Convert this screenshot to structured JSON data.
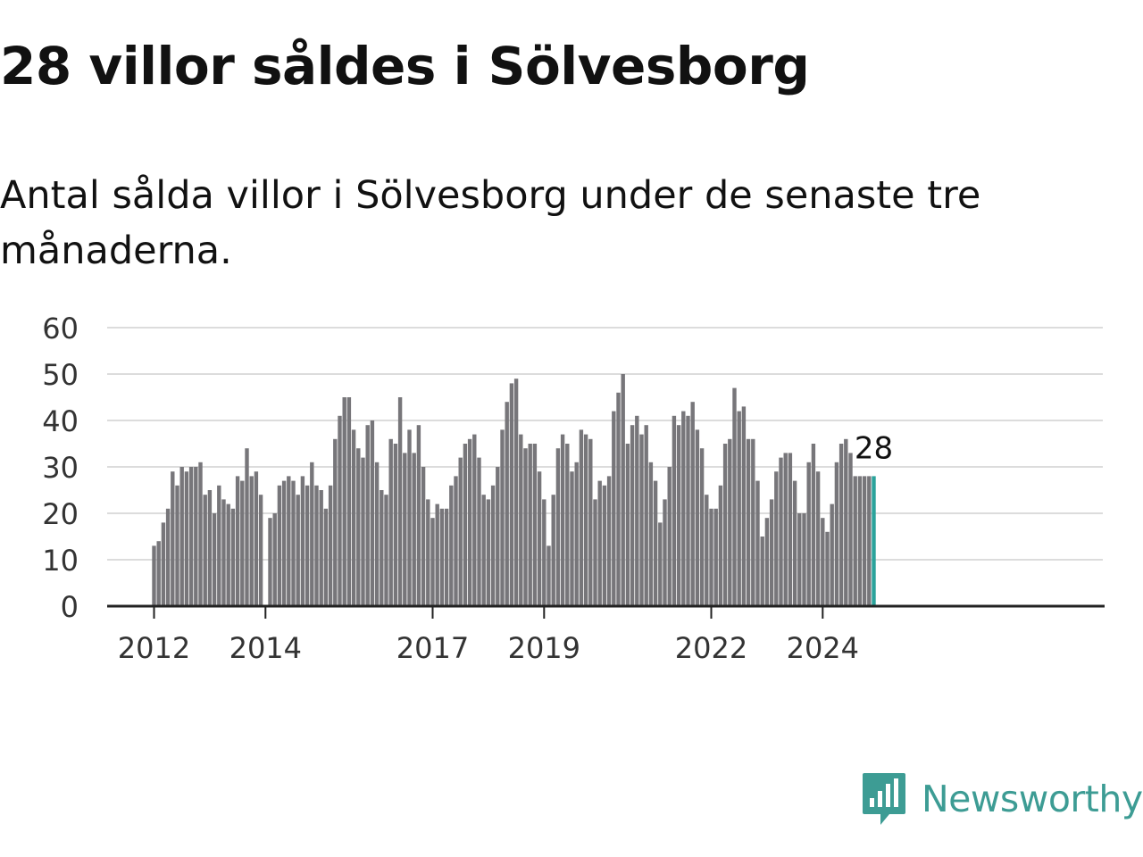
{
  "title": "28 villor såldes i Sölvesborg",
  "subtitle": "Antal sålda villor i Sölvesborg under de senaste tre månaderna.",
  "brand": {
    "name": "Newsworthy",
    "icon": "newsworthy-logo-icon",
    "color": "#3d9c94"
  },
  "colors": {
    "bar": "#77767a",
    "highlight": "#2ba39b",
    "grid": "#dcdcdc",
    "axis": "#222222"
  },
  "chart_data": {
    "type": "bar",
    "ylim": [
      0,
      60
    ],
    "yticks": [
      0,
      10,
      20,
      30,
      40,
      50,
      60
    ],
    "x_tick_labels": [
      "2012",
      "2014",
      "2017",
      "2019",
      "2022",
      "2024"
    ],
    "x_tick_index": [
      0,
      24,
      60,
      84,
      120,
      144
    ],
    "grid": true,
    "annotation": {
      "text": "28",
      "index": 155
    },
    "values": [
      13,
      14,
      18,
      21,
      29,
      26,
      30,
      29,
      30,
      30,
      31,
      24,
      25,
      20,
      26,
      23,
      22,
      21,
      28,
      27,
      34,
      28,
      29,
      24,
      null,
      19,
      20,
      26,
      27,
      28,
      27,
      24,
      28,
      26,
      31,
      26,
      25,
      21,
      26,
      36,
      41,
      45,
      45,
      38,
      34,
      32,
      39,
      40,
      31,
      25,
      24,
      36,
      35,
      45,
      33,
      38,
      33,
      39,
      30,
      23,
      19,
      22,
      21,
      21,
      26,
      28,
      32,
      35,
      36,
      37,
      32,
      24,
      23,
      26,
      30,
      38,
      44,
      48,
      49,
      37,
      34,
      35,
      35,
      29,
      23,
      13,
      24,
      34,
      37,
      35,
      29,
      31,
      38,
      37,
      36,
      23,
      27,
      26,
      28,
      42,
      46,
      50,
      35,
      39,
      41,
      37,
      39,
      31,
      27,
      18,
      23,
      30,
      41,
      39,
      42,
      41,
      44,
      38,
      34,
      24,
      21,
      21,
      26,
      35,
      36,
      47,
      42,
      43,
      36,
      36,
      27,
      15,
      19,
      23,
      29,
      32,
      33,
      33,
      27,
      20,
      20,
      31,
      35,
      29,
      19,
      16,
      22,
      31,
      35,
      36,
      33,
      28,
      28,
      28,
      28,
      28
    ]
  }
}
